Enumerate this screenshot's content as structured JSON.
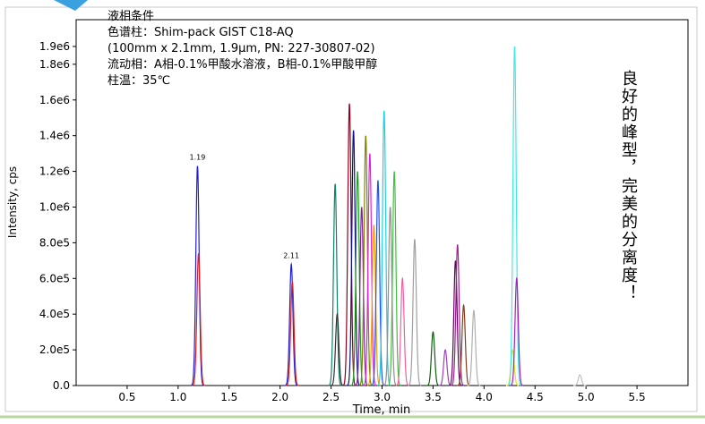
{
  "chart_data": {
    "type": "chromatogram",
    "notes": [
      "液相条件",
      "色谱柱：Shim-pack GIST C18-AQ",
      "(100mm x 2.1mm, 1.9μm, PN: 227-30807-02)",
      "流动相：A相-0.1%甲酸水溶液，B相-0.1%甲酸甲醇",
      "柱温：35℃"
    ],
    "side_text": "良好的峰型，完美的分离度！",
    "x_label": "Time, min",
    "y_label": "Intensity, cps",
    "xlim": [
      0,
      6
    ],
    "ylim": [
      0,
      2050000
    ],
    "xticks": [
      0.5,
      {
        "value": 1,
        "label": "1.0"
      },
      1.5,
      {
        "value": 2,
        "label": "2.0"
      },
      2.5,
      {
        "value": 3,
        "label": "3.0"
      },
      3.5,
      {
        "value": 4,
        "label": "4.0"
      },
      4.5,
      {
        "value": 5,
        "label": "5.0"
      },
      5.5
    ],
    "yticks": [
      {
        "value": 0,
        "label": "0.0"
      },
      {
        "value": 200000,
        "label": "2.0e5"
      },
      {
        "value": 400000,
        "label": "4.0e5"
      },
      {
        "value": 600000,
        "label": "6.0e5"
      },
      {
        "value": 800000,
        "label": "8.0e5"
      },
      {
        "value": 1000000,
        "label": "1.0e6"
      },
      {
        "value": 1200000,
        "label": "1.2e6"
      },
      {
        "value": 1400000,
        "label": "1.4e6"
      },
      {
        "value": 1600000,
        "label": "1.6e6"
      },
      {
        "value": 1800000,
        "label": "1.8e6"
      },
      {
        "value": 1900000,
        "label": "1.9e6"
      }
    ],
    "peaks": [
      {
        "x": 1.19,
        "value": 1230000,
        "color": "#2020d0",
        "label": "1.19"
      },
      {
        "x": 1.2,
        "value": 740000,
        "color": "#e02020"
      },
      {
        "x": 2.11,
        "value": 680000,
        "color": "#2020d0",
        "label": "2.11"
      },
      {
        "x": 2.12,
        "value": 580000,
        "color": "#e02020"
      },
      {
        "x": 2.54,
        "value": 1130000,
        "color": "#108070"
      },
      {
        "x": 2.56,
        "value": 400000,
        "color": "#303030"
      },
      {
        "x": 2.68,
        "value": 1580000,
        "color": "#900020"
      },
      {
        "x": 2.72,
        "value": 1430000,
        "color": "#101080"
      },
      {
        "x": 2.76,
        "value": 1200000,
        "color": "#20a020"
      },
      {
        "x": 2.8,
        "value": 1000000,
        "color": "#8020a0"
      },
      {
        "x": 2.84,
        "value": 1400000,
        "color": "#808000"
      },
      {
        "x": 2.88,
        "value": 1300000,
        "color": "#e020e0"
      },
      {
        "x": 2.92,
        "value": 900000,
        "color": "#f0a000"
      },
      {
        "x": 2.96,
        "value": 1150000,
        "color": "#2050f0"
      },
      {
        "x": 3.02,
        "value": 1540000,
        "color": "#20d0e0"
      },
      {
        "x": 3.08,
        "value": 1000000,
        "color": "#909090"
      },
      {
        "x": 3.12,
        "value": 1200000,
        "color": "#40c040"
      },
      {
        "x": 3.2,
        "value": 600000,
        "color": "#f060a0"
      },
      {
        "x": 3.32,
        "value": 820000,
        "color": "#a0a0a0"
      },
      {
        "x": 3.5,
        "value": 300000,
        "color": "#106010"
      },
      {
        "x": 3.62,
        "value": 200000,
        "color": "#a040c0"
      },
      {
        "x": 3.72,
        "value": 700000,
        "color": "#600060"
      },
      {
        "x": 3.74,
        "value": 790000,
        "color": "#a02090"
      },
      {
        "x": 3.8,
        "value": 450000,
        "color": "#804020"
      },
      {
        "x": 3.9,
        "value": 420000,
        "color": "#b0b0b0"
      },
      {
        "x": 4.28,
        "value": 200000,
        "color": "#e0e020"
      },
      {
        "x": 4.3,
        "value": 1900000,
        "color": "#40e8e8"
      },
      {
        "x": 4.32,
        "value": 600000,
        "color": "#a020c0"
      },
      {
        "x": 4.94,
        "value": 60000,
        "color": "#c0c0c0"
      }
    ]
  }
}
